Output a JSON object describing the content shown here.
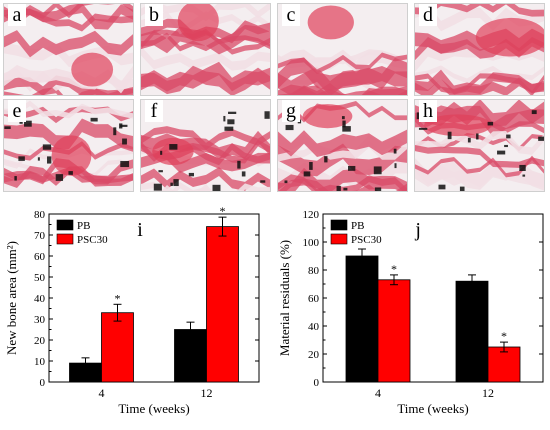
{
  "panels": [
    {
      "label": "a"
    },
    {
      "label": "b"
    },
    {
      "label": "c"
    },
    {
      "label": "d"
    },
    {
      "label": "e"
    },
    {
      "label": "f"
    },
    {
      "label": "g"
    },
    {
      "label": "h"
    }
  ],
  "colors": {
    "pb": "#000000",
    "psc30": "#ff0000",
    "tissue_pink": "#d94a67",
    "tissue_light": "#f2dfe4",
    "stain_black": "#111111"
  },
  "chart_data": [
    {
      "type": "bar",
      "panel_label": "i",
      "categories": [
        "4",
        "12"
      ],
      "series": [
        {
          "name": "PB",
          "values": [
            9,
            25
          ],
          "errors": [
            2.5,
            3.5
          ],
          "significant": [
            false,
            false
          ]
        },
        {
          "name": "PSC30",
          "values": [
            33,
            74
          ],
          "errors": [
            4,
            4.5
          ],
          "significant": [
            true,
            true
          ]
        }
      ],
      "xlabel": "Time (weeks)",
      "ylabel": "New bone area (mm²)",
      "ylim": [
        0,
        80
      ],
      "yticks": [
        "0",
        "10",
        "20",
        "30",
        "40",
        "50",
        "60",
        "70",
        "80"
      ],
      "significance_mark": "*",
      "legend_position": "top-left"
    },
    {
      "type": "bar",
      "panel_label": "j",
      "categories": [
        "4",
        "12"
      ],
      "series": [
        {
          "name": "PB",
          "values": [
            90,
            72
          ],
          "errors": [
            5,
            4.5
          ],
          "significant": [
            false,
            false
          ]
        },
        {
          "name": "PSC30",
          "values": [
            73,
            25
          ],
          "errors": [
            3.5,
            3.5
          ],
          "significant": [
            true,
            true
          ]
        }
      ],
      "xlabel": "Time (weeks)",
      "ylabel": "Material residuals (%)",
      "ylim": [
        0,
        120
      ],
      "yticks": [
        "0",
        "20",
        "40",
        "60",
        "80",
        "100",
        "120"
      ],
      "significance_mark": "*",
      "legend_position": "top-left"
    }
  ]
}
